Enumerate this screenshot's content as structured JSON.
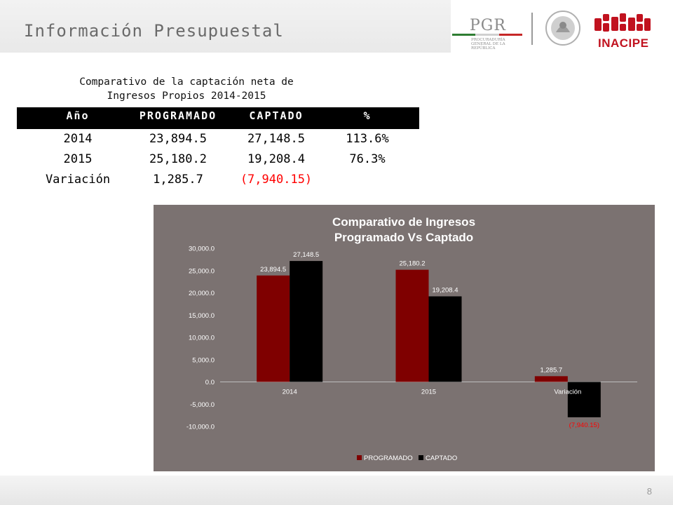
{
  "header": {
    "title": "Información Presupuestal",
    "logos": {
      "pgr": "PGR",
      "pgr_sub": "PROCURADURÍA GENERAL DE LA REPÚBLICA",
      "inacipe": "INACIPE"
    }
  },
  "table": {
    "title_line1": "Comparativo de la captación neta de",
    "title_line2": "Ingresos Propios 2014-2015",
    "headers": [
      "Año",
      "PROGRAMADO",
      "CAPTADO",
      "%"
    ],
    "rows": [
      [
        "2014",
        "23,894.5",
        "27,148.5",
        "113.6%"
      ],
      [
        "2015",
        "25,180.2",
        "19,208.4",
        "76.3%"
      ],
      [
        "Variación",
        "1,285.7",
        "(7,940.15)",
        ""
      ]
    ]
  },
  "chart_data": {
    "type": "bar",
    "title": "Comparativo de Ingresos Programado Vs Captado",
    "title_lines": [
      "Comparativo de Ingresos",
      "Programado Vs Captado"
    ],
    "categories": [
      "2014",
      "2015",
      "Variación"
    ],
    "series": [
      {
        "name": "PROGRAMADO",
        "values": [
          23894.5,
          25180.2,
          1285.7
        ],
        "labels": [
          "23,894.5",
          "25,180.2",
          "1,285.7"
        ],
        "color": "#7f0000"
      },
      {
        "name": "CAPTADO",
        "values": [
          27148.5,
          19208.4,
          -7940.15
        ],
        "labels": [
          "27,148.5",
          "19,208.4",
          "(7,940.15)"
        ],
        "color": "#000000"
      }
    ],
    "yticks": [
      "30,000.0",
      "25,000.0",
      "20,000.0",
      "15,000.0",
      "10,000.0",
      "5,000.0",
      "0.0",
      "-5,000.0",
      "-10,000.0"
    ],
    "ylim": [
      -10000,
      30000
    ],
    "grid": false,
    "legend": "bottom",
    "negative_label_color": "#ff0000"
  },
  "footer": {
    "page": "8"
  },
  "colors": {
    "programado": "#7f0000",
    "captado": "#000000",
    "panel": "#7b7271",
    "negative": "#ff0000"
  }
}
